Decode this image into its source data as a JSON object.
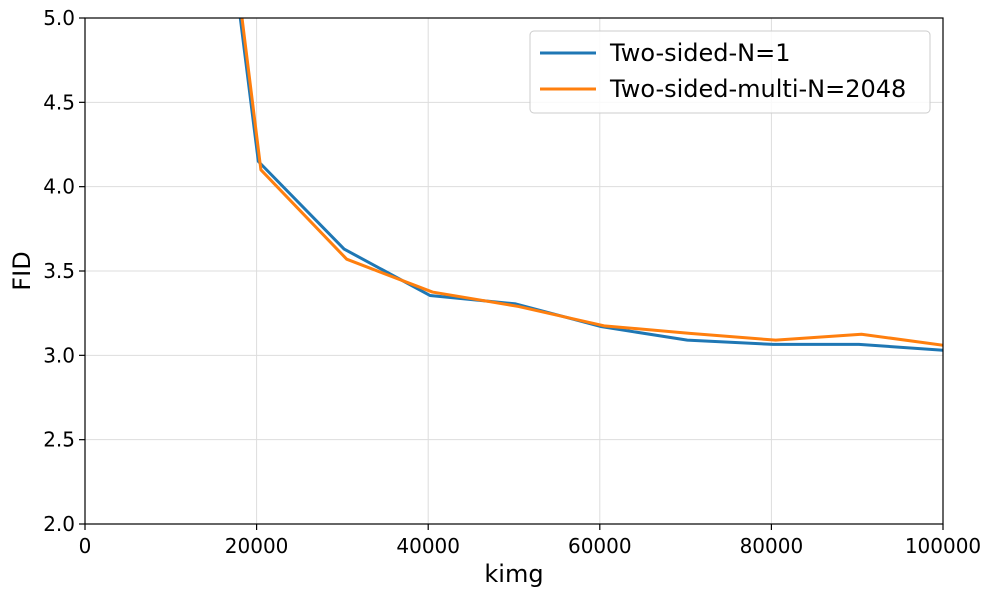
{
  "chart_data": {
    "type": "line",
    "title": "",
    "xlabel": "kimg",
    "ylabel": "FID",
    "xlim": [
      0,
      100000
    ],
    "ylim": [
      2.0,
      5.0
    ],
    "x_ticks": [
      0,
      20000,
      40000,
      60000,
      80000,
      100000
    ],
    "x_tick_labels": [
      "0",
      "20000",
      "40000",
      "60000",
      "80000",
      "100000"
    ],
    "y_ticks": [
      2.0,
      2.5,
      3.0,
      3.5,
      4.0,
      4.5,
      5.0
    ],
    "y_tick_labels": [
      "2.0",
      "2.5",
      "3.0",
      "3.5",
      "4.0",
      "4.5",
      "5.0"
    ],
    "grid": true,
    "legend_position": "top-right",
    "series": [
      {
        "name": "Two-sided-N=1",
        "color": "#1f77b4",
        "x": [
          18100,
          20200,
          30200,
          40200,
          50200,
          60200,
          70200,
          80200,
          90200,
          100000
        ],
        "y": [
          5.0,
          4.15,
          3.63,
          3.355,
          3.305,
          3.17,
          3.09,
          3.065,
          3.065,
          3.03
        ]
      },
      {
        "name": "Two-sided-multi-N=2048",
        "color": "#ff7f0e",
        "x": [
          18300,
          20500,
          30500,
          40500,
          50500,
          60500,
          70500,
          80500,
          90500,
          100000
        ],
        "y": [
          5.0,
          4.1,
          3.57,
          3.375,
          3.29,
          3.175,
          3.13,
          3.09,
          3.125,
          3.06
        ]
      }
    ]
  }
}
